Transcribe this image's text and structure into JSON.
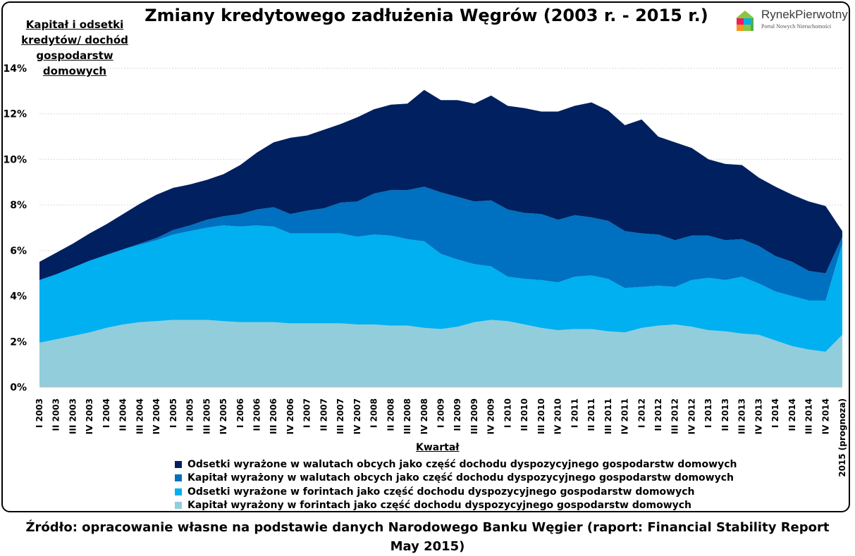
{
  "chart_data": {
    "type": "area",
    "stacked": true,
    "title": "Zmiany kredytowego zadłużenia Węgrów (2003 r. - 2015 r.)",
    "ylabel": "Kapitał i odsetki kredytów/ dochód gospodarstw domowych",
    "xlabel": "Kwartał",
    "ylim": [
      0,
      14
    ],
    "yticks": [
      "0%",
      "2%",
      "4%",
      "6%",
      "8%",
      "10%",
      "12%",
      "14%"
    ],
    "grid": true,
    "legend_position": "bottom",
    "categories": [
      "I 2003",
      "II 2003",
      "III 2003",
      "IV 2003",
      "I 2004",
      "II 2004",
      "III 2004",
      "IV 2004",
      "I 2005",
      "II 2005",
      "III 2005",
      "IV 2005",
      "I 2006",
      "II 2006",
      "III 2006",
      "IV 2006",
      "I 2007",
      "II 2007",
      "III 2007",
      "IV 2007",
      "I 2008",
      "II 2008",
      "III 2008",
      "IV 2008",
      "I 2009",
      "II 2009",
      "III 2009",
      "IV 2009",
      "I 2010",
      "II 2010",
      "III 2010",
      "IV 2010",
      "I 2011",
      "II 2011",
      "III 2011",
      "IV 2011",
      "I 2012",
      "II 2012",
      "III 2012",
      "IV 2012",
      "I 2013",
      "II 2013",
      "III 2013",
      "IV 2013",
      "I 2014",
      "II 2014",
      "III 2014",
      "IV 2014",
      "2015 (prognoza)"
    ],
    "series": [
      {
        "name": "Kapitał wyrażony w forintach jako część dochodu dyspozycyjnego gospodarstw domowych",
        "color": "#92cddc",
        "values": [
          1.95,
          2.1,
          2.25,
          2.4,
          2.6,
          2.75,
          2.85,
          2.9,
          2.95,
          2.95,
          2.95,
          2.9,
          2.85,
          2.85,
          2.85,
          2.8,
          2.8,
          2.8,
          2.8,
          2.75,
          2.75,
          2.7,
          2.7,
          2.6,
          2.55,
          2.65,
          2.85,
          2.95,
          2.9,
          2.75,
          2.6,
          2.5,
          2.55,
          2.55,
          2.45,
          2.4,
          2.6,
          2.7,
          2.75,
          2.65,
          2.5,
          2.45,
          2.35,
          2.3,
          2.05,
          1.8,
          1.65,
          1.55,
          2.3
        ]
      },
      {
        "name": "Odsetki wyrażone w forintach jako część dochodu dyspozycyjnego gospodarstw domowych",
        "color": "#00b0f0",
        "values": [
          2.75,
          2.85,
          3.0,
          3.15,
          3.2,
          3.3,
          3.4,
          3.55,
          3.75,
          3.9,
          4.05,
          4.2,
          4.2,
          4.25,
          4.2,
          3.95,
          3.95,
          3.95,
          3.95,
          3.85,
          3.95,
          3.95,
          3.8,
          3.8,
          3.3,
          2.95,
          2.55,
          2.35,
          1.95,
          2.0,
          2.1,
          2.1,
          2.3,
          2.35,
          2.3,
          1.95,
          1.8,
          1.75,
          1.65,
          2.05,
          2.3,
          2.25,
          2.5,
          2.25,
          2.15,
          2.2,
          2.15,
          2.25,
          4.0
        ]
      },
      {
        "name": "Kapitał wyrażony w walutach obcych jako część dochodu dyspozycyjnego gospodarstw domowych",
        "color": "#0070c0",
        "values": [
          0,
          0,
          0,
          0,
          0,
          0,
          0.05,
          0.1,
          0.2,
          0.25,
          0.35,
          0.4,
          0.55,
          0.7,
          0.85,
          0.85,
          1.0,
          1.1,
          1.35,
          1.55,
          1.8,
          2.0,
          2.15,
          2.4,
          2.7,
          2.75,
          2.75,
          2.9,
          2.95,
          2.9,
          2.9,
          2.75,
          2.7,
          2.55,
          2.55,
          2.5,
          2.35,
          2.25,
          2.05,
          1.95,
          1.85,
          1.75,
          1.65,
          1.65,
          1.55,
          1.5,
          1.3,
          1.2,
          0.3
        ]
      },
      {
        "name": "Odsetki wyrażone w walutach obcych jako część dochodu dyspozycyjnego gospodarstw domowych",
        "color": "#00205f",
        "values": [
          0.8,
          0.95,
          1.05,
          1.2,
          1.35,
          1.55,
          1.75,
          1.9,
          1.85,
          1.8,
          1.75,
          1.85,
          2.15,
          2.5,
          2.85,
          3.35,
          3.3,
          3.45,
          3.45,
          3.7,
          3.7,
          3.75,
          3.8,
          4.25,
          4.05,
          4.25,
          4.3,
          4.6,
          4.55,
          4.6,
          4.5,
          4.75,
          4.8,
          5.05,
          4.85,
          4.65,
          5.0,
          4.3,
          4.3,
          3.85,
          3.35,
          3.35,
          3.25,
          3.0,
          3.05,
          2.95,
          3.05,
          2.95,
          0.25
        ]
      }
    ]
  },
  "logo": {
    "name": "RynekPierwotny",
    "tagline": "Portal Nowych Nieruchomości"
  },
  "source": "Źródło: opracowanie własne na podstawie danych Narodowego Banku Węgier (raport: Financial Stability Report May 2015)"
}
